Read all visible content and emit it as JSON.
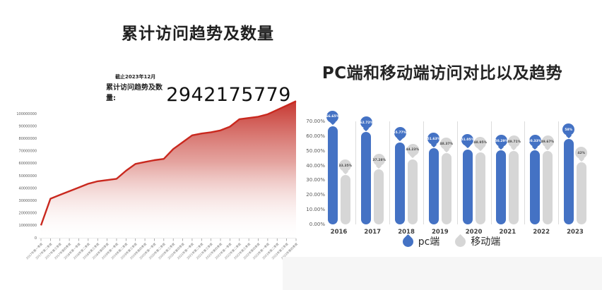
{
  "page": {
    "background": "#ffffff"
  },
  "left_chart": {
    "title": "累计访问趋势及数量",
    "annotation": {
      "date_note": "截止2023年12月",
      "label": "累计访问趋势及数量:",
      "value": "2942175779"
    }
  },
  "right_chart": {
    "title": "PC端和移动端访问对比以及趋势",
    "legend": [
      {
        "label": "pc端",
        "color": "#4472c4"
      },
      {
        "label": "移动端",
        "color": "#d6d6d6"
      }
    ]
  },
  "chart_data": [
    {
      "type": "area",
      "title": "累计访问趋势及数量",
      "annotation_total": 2942175779,
      "line_color": "#c9281e",
      "fill_top_color": "#c5312a",
      "x": [
        "2017年第一季度",
        "2017年第二季度",
        "2017年第三季度",
        "2017年第四季度",
        "2018年第一季度",
        "2018年第二季度",
        "2018年第三季度",
        "2018年第四季度",
        "2019年第一季度",
        "2019年第二季度",
        "2019年第三季度",
        "2019年第四季度",
        "2020年第一季度",
        "2020年第二季度",
        "2020年第三季度",
        "2020年第四季度",
        "2021年第一季度",
        "2021年第二季度",
        "2021年第三季度",
        "2021年第四季度",
        "2022年第一季度",
        "2022年第二季度",
        "2022年第三季度",
        "2022年第四季度",
        "2023年第一季度",
        "2023年第二季度",
        "2023年第三季度",
        "2023年第四季度"
      ],
      "values": [
        10000000,
        31500000,
        34500000,
        37500000,
        40500000,
        43500000,
        45500000,
        46500000,
        47500000,
        54000000,
        59500000,
        61000000,
        62500000,
        63500000,
        71500000,
        77000000,
        82500000,
        84000000,
        85000000,
        86500000,
        89500000,
        95500000,
        96500000,
        97500000,
        99500000,
        103000000,
        106500000,
        110000000
      ],
      "yticks": [
        0,
        10000000,
        20000000,
        30000000,
        40000000,
        50000000,
        60000000,
        70000000,
        80000000,
        90000000,
        100000000
      ],
      "ylim": [
        0,
        100000000
      ],
      "grid": false
    },
    {
      "type": "bar",
      "title": "PC端和移动端访问对比以及趋势",
      "categories": [
        "2016",
        "2017",
        "2018",
        "2019",
        "2020",
        "2021",
        "2022",
        "2023"
      ],
      "series": [
        {
          "name": "pc端",
          "color": "#4472c4",
          "label_text_color": "#ffffff",
          "values": [
            66.65,
            62.72,
            55.77,
            51.63,
            51.05,
            50.29,
            50.33,
            58
          ],
          "labels": [
            "66.65%",
            "62.72%",
            "55.77%",
            "51.63%",
            "51.05%",
            "50.29%",
            "50.33%",
            "58%"
          ]
        },
        {
          "name": "移动端",
          "color": "#d6d6d6",
          "label_text_color": "#4a4a4a",
          "values": [
            33.35,
            37.28,
            44.23,
            48.37,
            48.95,
            49.71,
            49.67,
            42
          ],
          "labels": [
            "33.35%",
            "37.28%",
            "44.23%",
            "48.37%",
            "48.95%",
            "49.71%",
            "49.67%",
            "42%"
          ]
        }
      ],
      "yticks": [
        "0.00%",
        "10.00%",
        "20.00%",
        "30.00%",
        "40.00%",
        "50.00%",
        "60.00%",
        "70.00%"
      ],
      "ylim": [
        0,
        70
      ],
      "legend_position": "bottom",
      "grid": false
    }
  ]
}
